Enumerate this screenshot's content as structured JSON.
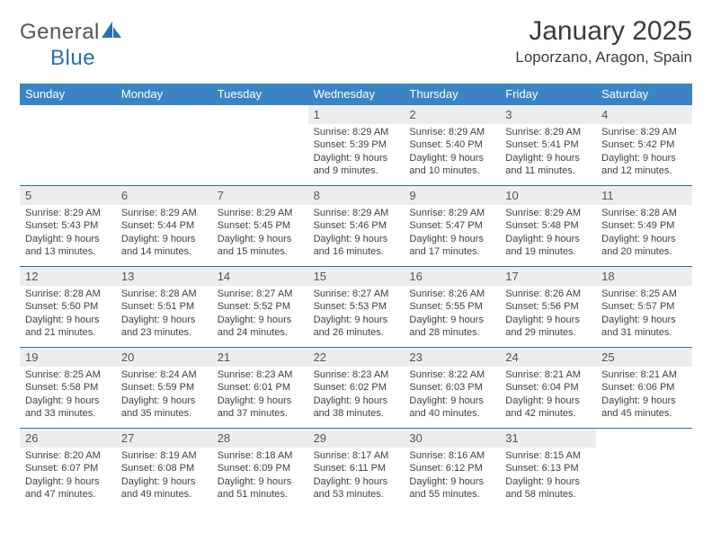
{
  "logo": {
    "text1": "General",
    "text2": "Blue"
  },
  "title": "January 2025",
  "location": "Loporzano, Aragon, Spain",
  "colors": {
    "header_bg": "#3b84c4",
    "header_text": "#ffffff",
    "daynum_bg": "#ecedef",
    "row_border": "#2e6fa8",
    "logo_gray": "#555555",
    "logo_blue": "#2a6fb3"
  },
  "day_headers": [
    "Sunday",
    "Monday",
    "Tuesday",
    "Wednesday",
    "Thursday",
    "Friday",
    "Saturday"
  ],
  "weeks": [
    [
      {
        "empty": true
      },
      {
        "empty": true
      },
      {
        "empty": true
      },
      {
        "num": "1",
        "sunrise": "Sunrise: 8:29 AM",
        "sunset": "Sunset: 5:39 PM",
        "day1": "Daylight: 9 hours",
        "day2": "and 9 minutes."
      },
      {
        "num": "2",
        "sunrise": "Sunrise: 8:29 AM",
        "sunset": "Sunset: 5:40 PM",
        "day1": "Daylight: 9 hours",
        "day2": "and 10 minutes."
      },
      {
        "num": "3",
        "sunrise": "Sunrise: 8:29 AM",
        "sunset": "Sunset: 5:41 PM",
        "day1": "Daylight: 9 hours",
        "day2": "and 11 minutes."
      },
      {
        "num": "4",
        "sunrise": "Sunrise: 8:29 AM",
        "sunset": "Sunset: 5:42 PM",
        "day1": "Daylight: 9 hours",
        "day2": "and 12 minutes."
      }
    ],
    [
      {
        "num": "5",
        "sunrise": "Sunrise: 8:29 AM",
        "sunset": "Sunset: 5:43 PM",
        "day1": "Daylight: 9 hours",
        "day2": "and 13 minutes."
      },
      {
        "num": "6",
        "sunrise": "Sunrise: 8:29 AM",
        "sunset": "Sunset: 5:44 PM",
        "day1": "Daylight: 9 hours",
        "day2": "and 14 minutes."
      },
      {
        "num": "7",
        "sunrise": "Sunrise: 8:29 AM",
        "sunset": "Sunset: 5:45 PM",
        "day1": "Daylight: 9 hours",
        "day2": "and 15 minutes."
      },
      {
        "num": "8",
        "sunrise": "Sunrise: 8:29 AM",
        "sunset": "Sunset: 5:46 PM",
        "day1": "Daylight: 9 hours",
        "day2": "and 16 minutes."
      },
      {
        "num": "9",
        "sunrise": "Sunrise: 8:29 AM",
        "sunset": "Sunset: 5:47 PM",
        "day1": "Daylight: 9 hours",
        "day2": "and 17 minutes."
      },
      {
        "num": "10",
        "sunrise": "Sunrise: 8:29 AM",
        "sunset": "Sunset: 5:48 PM",
        "day1": "Daylight: 9 hours",
        "day2": "and 19 minutes."
      },
      {
        "num": "11",
        "sunrise": "Sunrise: 8:28 AM",
        "sunset": "Sunset: 5:49 PM",
        "day1": "Daylight: 9 hours",
        "day2": "and 20 minutes."
      }
    ],
    [
      {
        "num": "12",
        "sunrise": "Sunrise: 8:28 AM",
        "sunset": "Sunset: 5:50 PM",
        "day1": "Daylight: 9 hours",
        "day2": "and 21 minutes."
      },
      {
        "num": "13",
        "sunrise": "Sunrise: 8:28 AM",
        "sunset": "Sunset: 5:51 PM",
        "day1": "Daylight: 9 hours",
        "day2": "and 23 minutes."
      },
      {
        "num": "14",
        "sunrise": "Sunrise: 8:27 AM",
        "sunset": "Sunset: 5:52 PM",
        "day1": "Daylight: 9 hours",
        "day2": "and 24 minutes."
      },
      {
        "num": "15",
        "sunrise": "Sunrise: 8:27 AM",
        "sunset": "Sunset: 5:53 PM",
        "day1": "Daylight: 9 hours",
        "day2": "and 26 minutes."
      },
      {
        "num": "16",
        "sunrise": "Sunrise: 8:26 AM",
        "sunset": "Sunset: 5:55 PM",
        "day1": "Daylight: 9 hours",
        "day2": "and 28 minutes."
      },
      {
        "num": "17",
        "sunrise": "Sunrise: 8:26 AM",
        "sunset": "Sunset: 5:56 PM",
        "day1": "Daylight: 9 hours",
        "day2": "and 29 minutes."
      },
      {
        "num": "18",
        "sunrise": "Sunrise: 8:25 AM",
        "sunset": "Sunset: 5:57 PM",
        "day1": "Daylight: 9 hours",
        "day2": "and 31 minutes."
      }
    ],
    [
      {
        "num": "19",
        "sunrise": "Sunrise: 8:25 AM",
        "sunset": "Sunset: 5:58 PM",
        "day1": "Daylight: 9 hours",
        "day2": "and 33 minutes."
      },
      {
        "num": "20",
        "sunrise": "Sunrise: 8:24 AM",
        "sunset": "Sunset: 5:59 PM",
        "day1": "Daylight: 9 hours",
        "day2": "and 35 minutes."
      },
      {
        "num": "21",
        "sunrise": "Sunrise: 8:23 AM",
        "sunset": "Sunset: 6:01 PM",
        "day1": "Daylight: 9 hours",
        "day2": "and 37 minutes."
      },
      {
        "num": "22",
        "sunrise": "Sunrise: 8:23 AM",
        "sunset": "Sunset: 6:02 PM",
        "day1": "Daylight: 9 hours",
        "day2": "and 38 minutes."
      },
      {
        "num": "23",
        "sunrise": "Sunrise: 8:22 AM",
        "sunset": "Sunset: 6:03 PM",
        "day1": "Daylight: 9 hours",
        "day2": "and 40 minutes."
      },
      {
        "num": "24",
        "sunrise": "Sunrise: 8:21 AM",
        "sunset": "Sunset: 6:04 PM",
        "day1": "Daylight: 9 hours",
        "day2": "and 42 minutes."
      },
      {
        "num": "25",
        "sunrise": "Sunrise: 8:21 AM",
        "sunset": "Sunset: 6:06 PM",
        "day1": "Daylight: 9 hours",
        "day2": "and 45 minutes."
      }
    ],
    [
      {
        "num": "26",
        "sunrise": "Sunrise: 8:20 AM",
        "sunset": "Sunset: 6:07 PM",
        "day1": "Daylight: 9 hours",
        "day2": "and 47 minutes."
      },
      {
        "num": "27",
        "sunrise": "Sunrise: 8:19 AM",
        "sunset": "Sunset: 6:08 PM",
        "day1": "Daylight: 9 hours",
        "day2": "and 49 minutes."
      },
      {
        "num": "28",
        "sunrise": "Sunrise: 8:18 AM",
        "sunset": "Sunset: 6:09 PM",
        "day1": "Daylight: 9 hours",
        "day2": "and 51 minutes."
      },
      {
        "num": "29",
        "sunrise": "Sunrise: 8:17 AM",
        "sunset": "Sunset: 6:11 PM",
        "day1": "Daylight: 9 hours",
        "day2": "and 53 minutes."
      },
      {
        "num": "30",
        "sunrise": "Sunrise: 8:16 AM",
        "sunset": "Sunset: 6:12 PM",
        "day1": "Daylight: 9 hours",
        "day2": "and 55 minutes."
      },
      {
        "num": "31",
        "sunrise": "Sunrise: 8:15 AM",
        "sunset": "Sunset: 6:13 PM",
        "day1": "Daylight: 9 hours",
        "day2": "and 58 minutes."
      },
      {
        "empty": true
      }
    ]
  ]
}
